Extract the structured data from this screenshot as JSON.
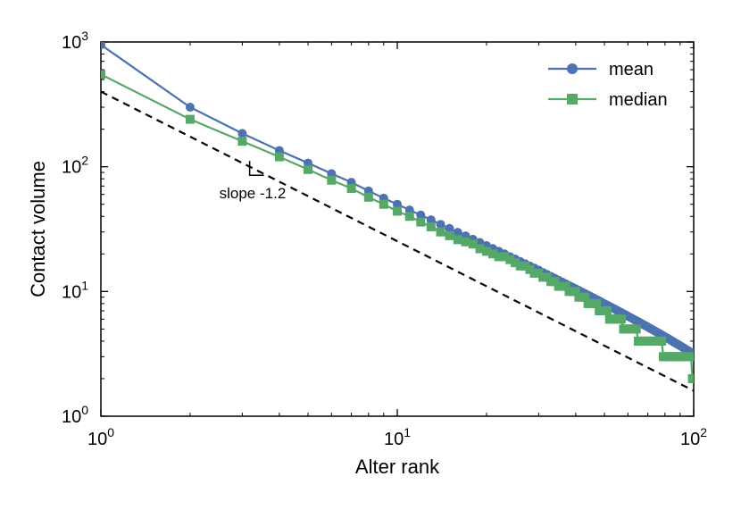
{
  "chart_data": {
    "type": "line",
    "xscale": "log",
    "yscale": "log",
    "xlim": [
      1,
      100
    ],
    "ylim": [
      1,
      1000
    ],
    "xlabel": "Alter rank",
    "ylabel": "Contact volume",
    "x_ticks": [
      {
        "base": "10",
        "exp": "0"
      },
      {
        "base": "10",
        "exp": "1"
      },
      {
        "base": "10",
        "exp": "2"
      }
    ],
    "y_ticks": [
      {
        "base": "10",
        "exp": "0"
      },
      {
        "base": "10",
        "exp": "1"
      },
      {
        "base": "10",
        "exp": "2"
      },
      {
        "base": "10",
        "exp": "3"
      }
    ],
    "colors": {
      "mean": "#4C72B0",
      "median": "#55A868",
      "reference": "#000000"
    },
    "series": [
      {
        "name": "mean",
        "marker": "circle",
        "x": [
          1,
          2,
          3,
          4,
          5,
          6,
          7,
          8,
          9,
          10,
          11,
          12,
          13,
          14,
          15,
          16,
          17,
          18,
          19,
          20,
          21,
          22,
          23,
          24,
          25,
          26,
          27,
          28,
          29,
          30,
          31,
          32,
          33,
          34,
          35,
          36,
          37,
          38,
          39,
          40,
          41,
          42,
          43,
          44,
          45,
          46,
          47,
          48,
          49,
          50,
          51,
          52,
          53,
          54,
          55,
          56,
          57,
          58,
          59,
          60,
          61,
          62,
          63,
          64,
          65,
          66,
          67,
          68,
          69,
          70,
          71,
          72,
          73,
          74,
          75,
          76,
          77,
          78,
          79,
          80,
          81,
          82,
          83,
          84,
          85,
          86,
          87,
          88,
          89,
          90,
          91,
          92,
          93,
          94,
          95,
          96,
          97,
          98,
          99,
          100
        ],
        "y": [
          950,
          300,
          185,
          135,
          107,
          88,
          75,
          64,
          56,
          50,
          45,
          41,
          37.5,
          34.5,
          32,
          29.8,
          27.9,
          26.2,
          24.7,
          23.3,
          22.1,
          21,
          20,
          19,
          18.2,
          17.4,
          16.7,
          16,
          15.4,
          14.8,
          14.2,
          13.7,
          13.2,
          12.75,
          12.3,
          11.9,
          11.5,
          11.15,
          10.8,
          10.5,
          10.2,
          9.9,
          9.6,
          9.35,
          9.1,
          8.85,
          8.62,
          8.4,
          8.18,
          7.97,
          7.78,
          7.6,
          7.42,
          7.25,
          7.08,
          6.92,
          6.77,
          6.62,
          6.48,
          6.34,
          6.21,
          6.08,
          5.95,
          5.83,
          5.72,
          5.61,
          5.5,
          5.39,
          5.29,
          5.19,
          5.09,
          5.0,
          4.91,
          4.82,
          4.73,
          4.65,
          4.57,
          4.49,
          4.41,
          4.33,
          4.26,
          4.19,
          4.12,
          4.05,
          3.98,
          3.91,
          3.85,
          3.79,
          3.73,
          3.67,
          3.61,
          3.55,
          3.5,
          3.44,
          3.39,
          3.34,
          3.29,
          3.24,
          3.19,
          3.1
        ]
      },
      {
        "name": "median",
        "marker": "square",
        "x": [
          1,
          2,
          3,
          4,
          5,
          6,
          7,
          8,
          9,
          10,
          11,
          12,
          13,
          14,
          15,
          16,
          17,
          18,
          19,
          20,
          21,
          22,
          23,
          24,
          25,
          26,
          27,
          28,
          29,
          30,
          31,
          32,
          33,
          34,
          35,
          36,
          37,
          38,
          39,
          40,
          41,
          42,
          43,
          44,
          45,
          46,
          47,
          48,
          49,
          50,
          51,
          52,
          53,
          54,
          55,
          56,
          57,
          58,
          59,
          60,
          61,
          62,
          63,
          64,
          65,
          66,
          67,
          68,
          69,
          70,
          71,
          72,
          73,
          74,
          75,
          76,
          77,
          78,
          79,
          80,
          81,
          82,
          83,
          84,
          85,
          86,
          87,
          88,
          89,
          90,
          91,
          92,
          93,
          94,
          95,
          96,
          97,
          98,
          99,
          100
        ],
        "y": [
          550,
          240,
          160,
          120,
          95,
          78,
          67,
          57,
          50,
          44,
          40,
          36,
          33,
          30,
          28,
          26,
          25,
          24,
          22,
          21,
          20,
          19,
          19,
          18,
          17,
          16,
          16,
          15,
          14,
          14,
          13,
          13,
          12,
          12,
          11,
          11,
          11,
          10,
          10,
          10,
          9,
          9,
          9,
          8,
          8,
          8,
          8,
          7,
          7,
          7,
          7,
          6,
          6,
          6,
          6,
          6,
          6,
          5,
          5,
          5,
          5,
          5,
          5,
          5,
          4,
          4,
          4,
          4,
          4,
          4,
          4,
          4,
          4,
          4,
          4,
          4,
          4,
          4,
          3,
          3,
          3,
          3,
          3,
          3,
          3,
          3,
          3,
          3,
          3,
          3,
          3,
          3,
          3,
          3,
          3,
          3,
          3,
          3,
          2,
          2
        ]
      }
    ],
    "reference_line": {
      "x": [
        1,
        100
      ],
      "y": [
        400,
        1.6
      ],
      "style": "dashed",
      "annotation": "slope -1.2",
      "annotation_anchor": {
        "x": 3.5,
        "y": 80
      }
    },
    "legend": {
      "position": "top-right",
      "entries": [
        {
          "label": "mean",
          "marker": "circle",
          "series": "mean"
        },
        {
          "label": "median",
          "marker": "square",
          "series": "median"
        }
      ]
    }
  }
}
